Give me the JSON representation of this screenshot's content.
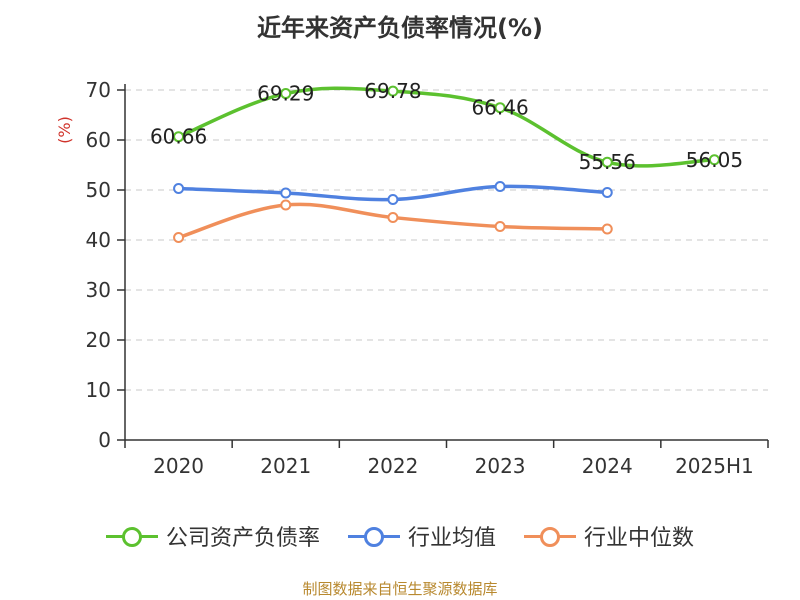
{
  "title": "近年来资产负债率情况(%)",
  "source": "制图数据来自恒生聚源数据库",
  "chart_data": {
    "type": "line",
    "title": "近年来资产负债率情况(%)",
    "xlabel": "",
    "ylabel": "(%)",
    "categories": [
      "2020",
      "2021",
      "2022",
      "2023",
      "2024",
      "2025H1"
    ],
    "ylim": [
      0,
      70
    ],
    "yticks": [
      0,
      10,
      20,
      30,
      40,
      50,
      60,
      70
    ],
    "grid": true,
    "legend_position": "bottom",
    "series": [
      {
        "name": "公司资产负债率",
        "color": "#5cc12f",
        "values": [
          60.66,
          69.29,
          69.78,
          66.46,
          55.56,
          56.05
        ],
        "labels": [
          "60.66",
          "69.29",
          "69.78",
          "66.46",
          "55.56",
          "56.05"
        ]
      },
      {
        "name": "行业均值",
        "color": "#4f81e0",
        "values": [
          50.3,
          49.4,
          48.1,
          50.7,
          49.5,
          null
        ]
      },
      {
        "name": "行业中位数",
        "color": "#f08f5a",
        "values": [
          40.5,
          47.0,
          44.5,
          42.7,
          42.2,
          null
        ]
      }
    ]
  }
}
